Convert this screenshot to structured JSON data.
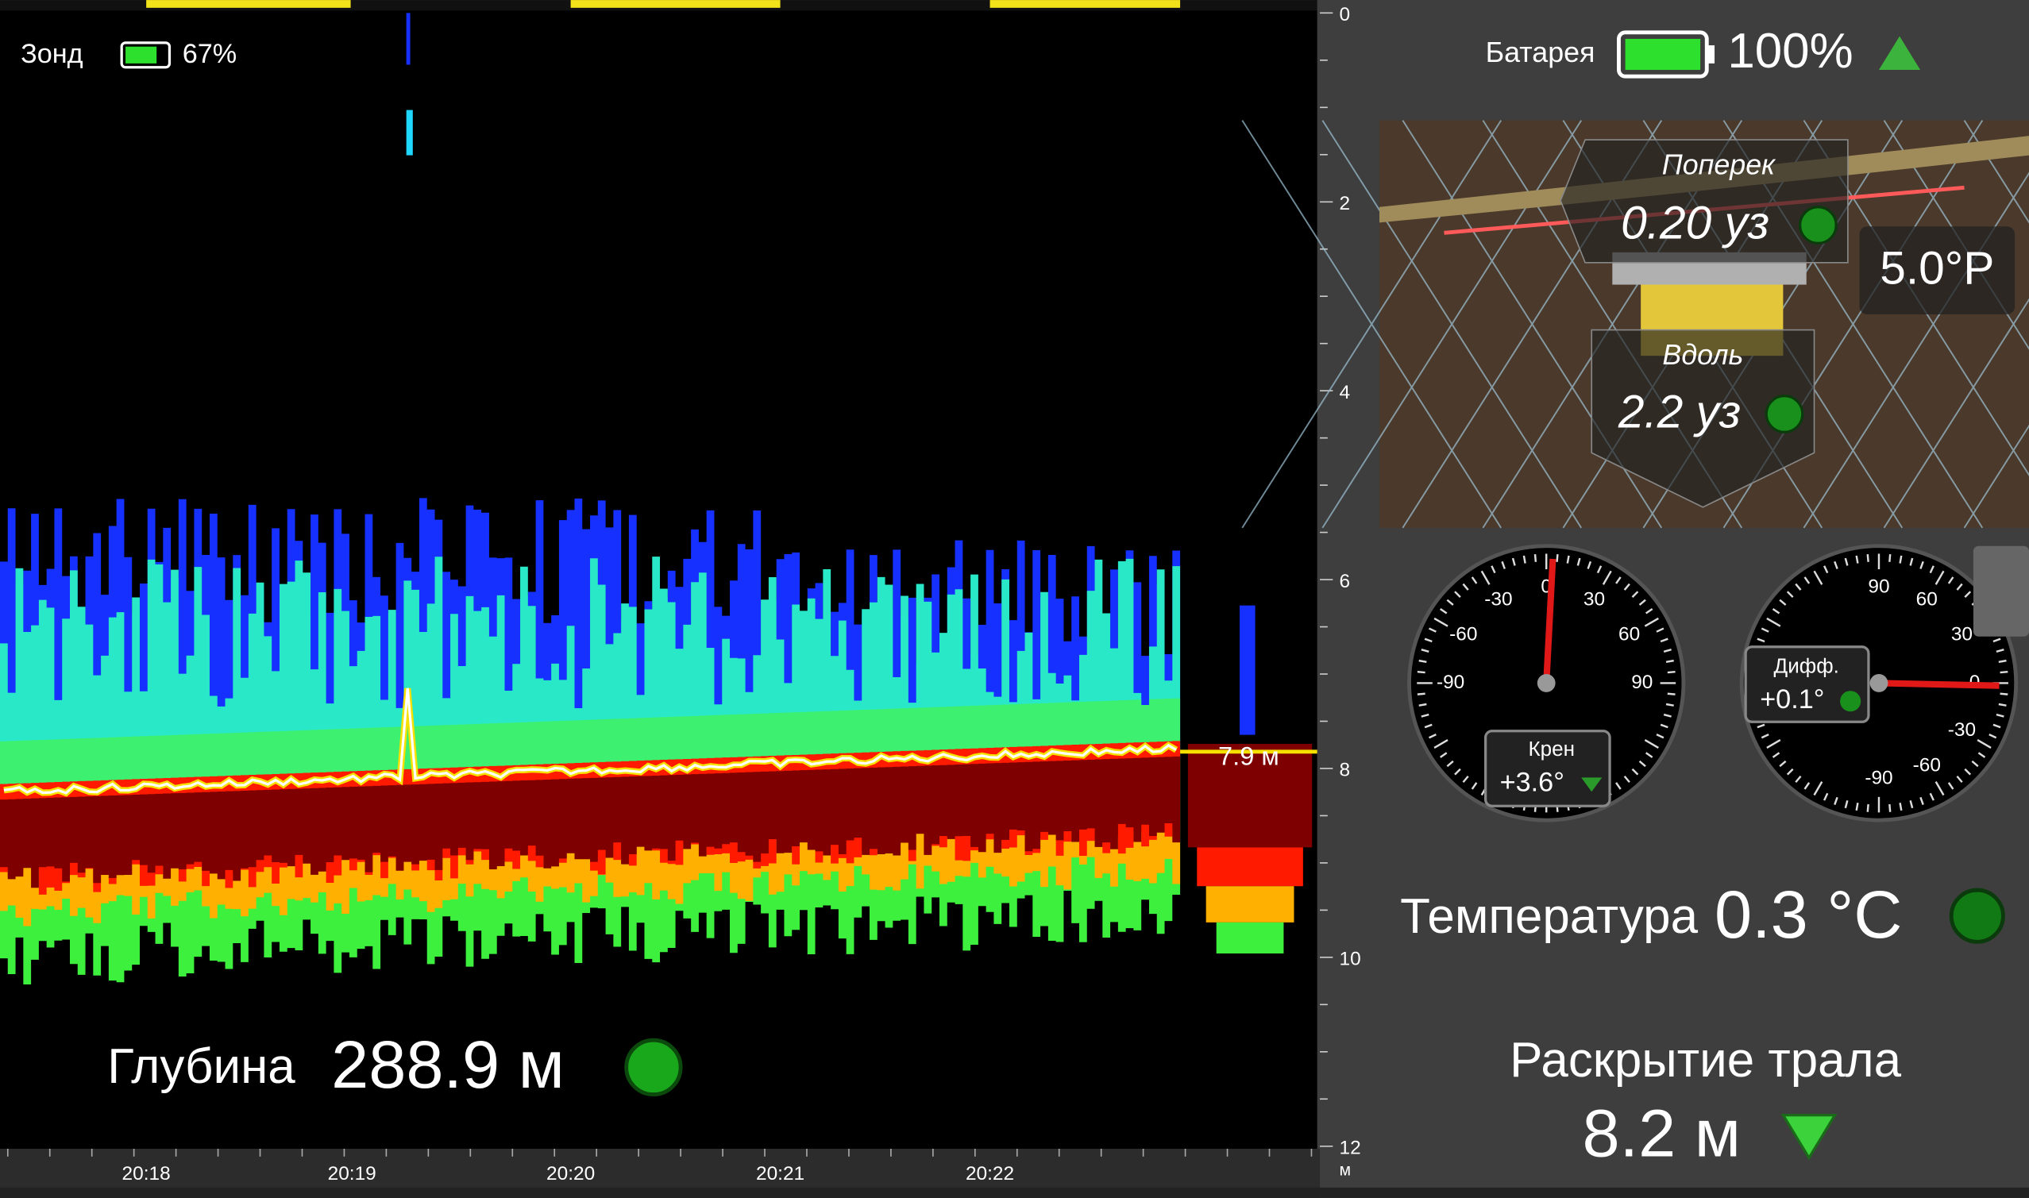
{
  "probe": {
    "label": "Зонд",
    "battery": "67%"
  },
  "battery": {
    "label": "Батарея",
    "value": "100%"
  },
  "echogram": {
    "depth_ticks": [
      "0",
      "2",
      "4",
      "6",
      "8",
      "10",
      "12"
    ],
    "depth_unit": "м",
    "time_ticks": [
      "20:18",
      "20:19",
      "20:20",
      "20:21",
      "20:22"
    ],
    "bottom_marker": "7.9 м",
    "depth_label": "Глубина",
    "depth_value": "288.9 м"
  },
  "trawl_view": {
    "across_label": "Поперек",
    "across_value": "0.20 уз",
    "along_label": "Вдоль",
    "along_value": "2.2 уз",
    "heading": "5.0°Р"
  },
  "roll_gauge": {
    "scale": [
      "-90",
      "-60",
      "-30",
      "0",
      "30",
      "60",
      "90"
    ],
    "label": "Крен",
    "value": "+3.6°"
  },
  "diff_gauge": {
    "scale": [
      "90",
      "60",
      "30",
      "0",
      "-30",
      "-60",
      "-90"
    ],
    "label": "Дифф.",
    "value": "+0.1°"
  },
  "temperature": {
    "label": "Температура",
    "value": "0.3 °C"
  },
  "opening": {
    "label": "Раскрытие трала",
    "value": "8.2 м"
  }
}
